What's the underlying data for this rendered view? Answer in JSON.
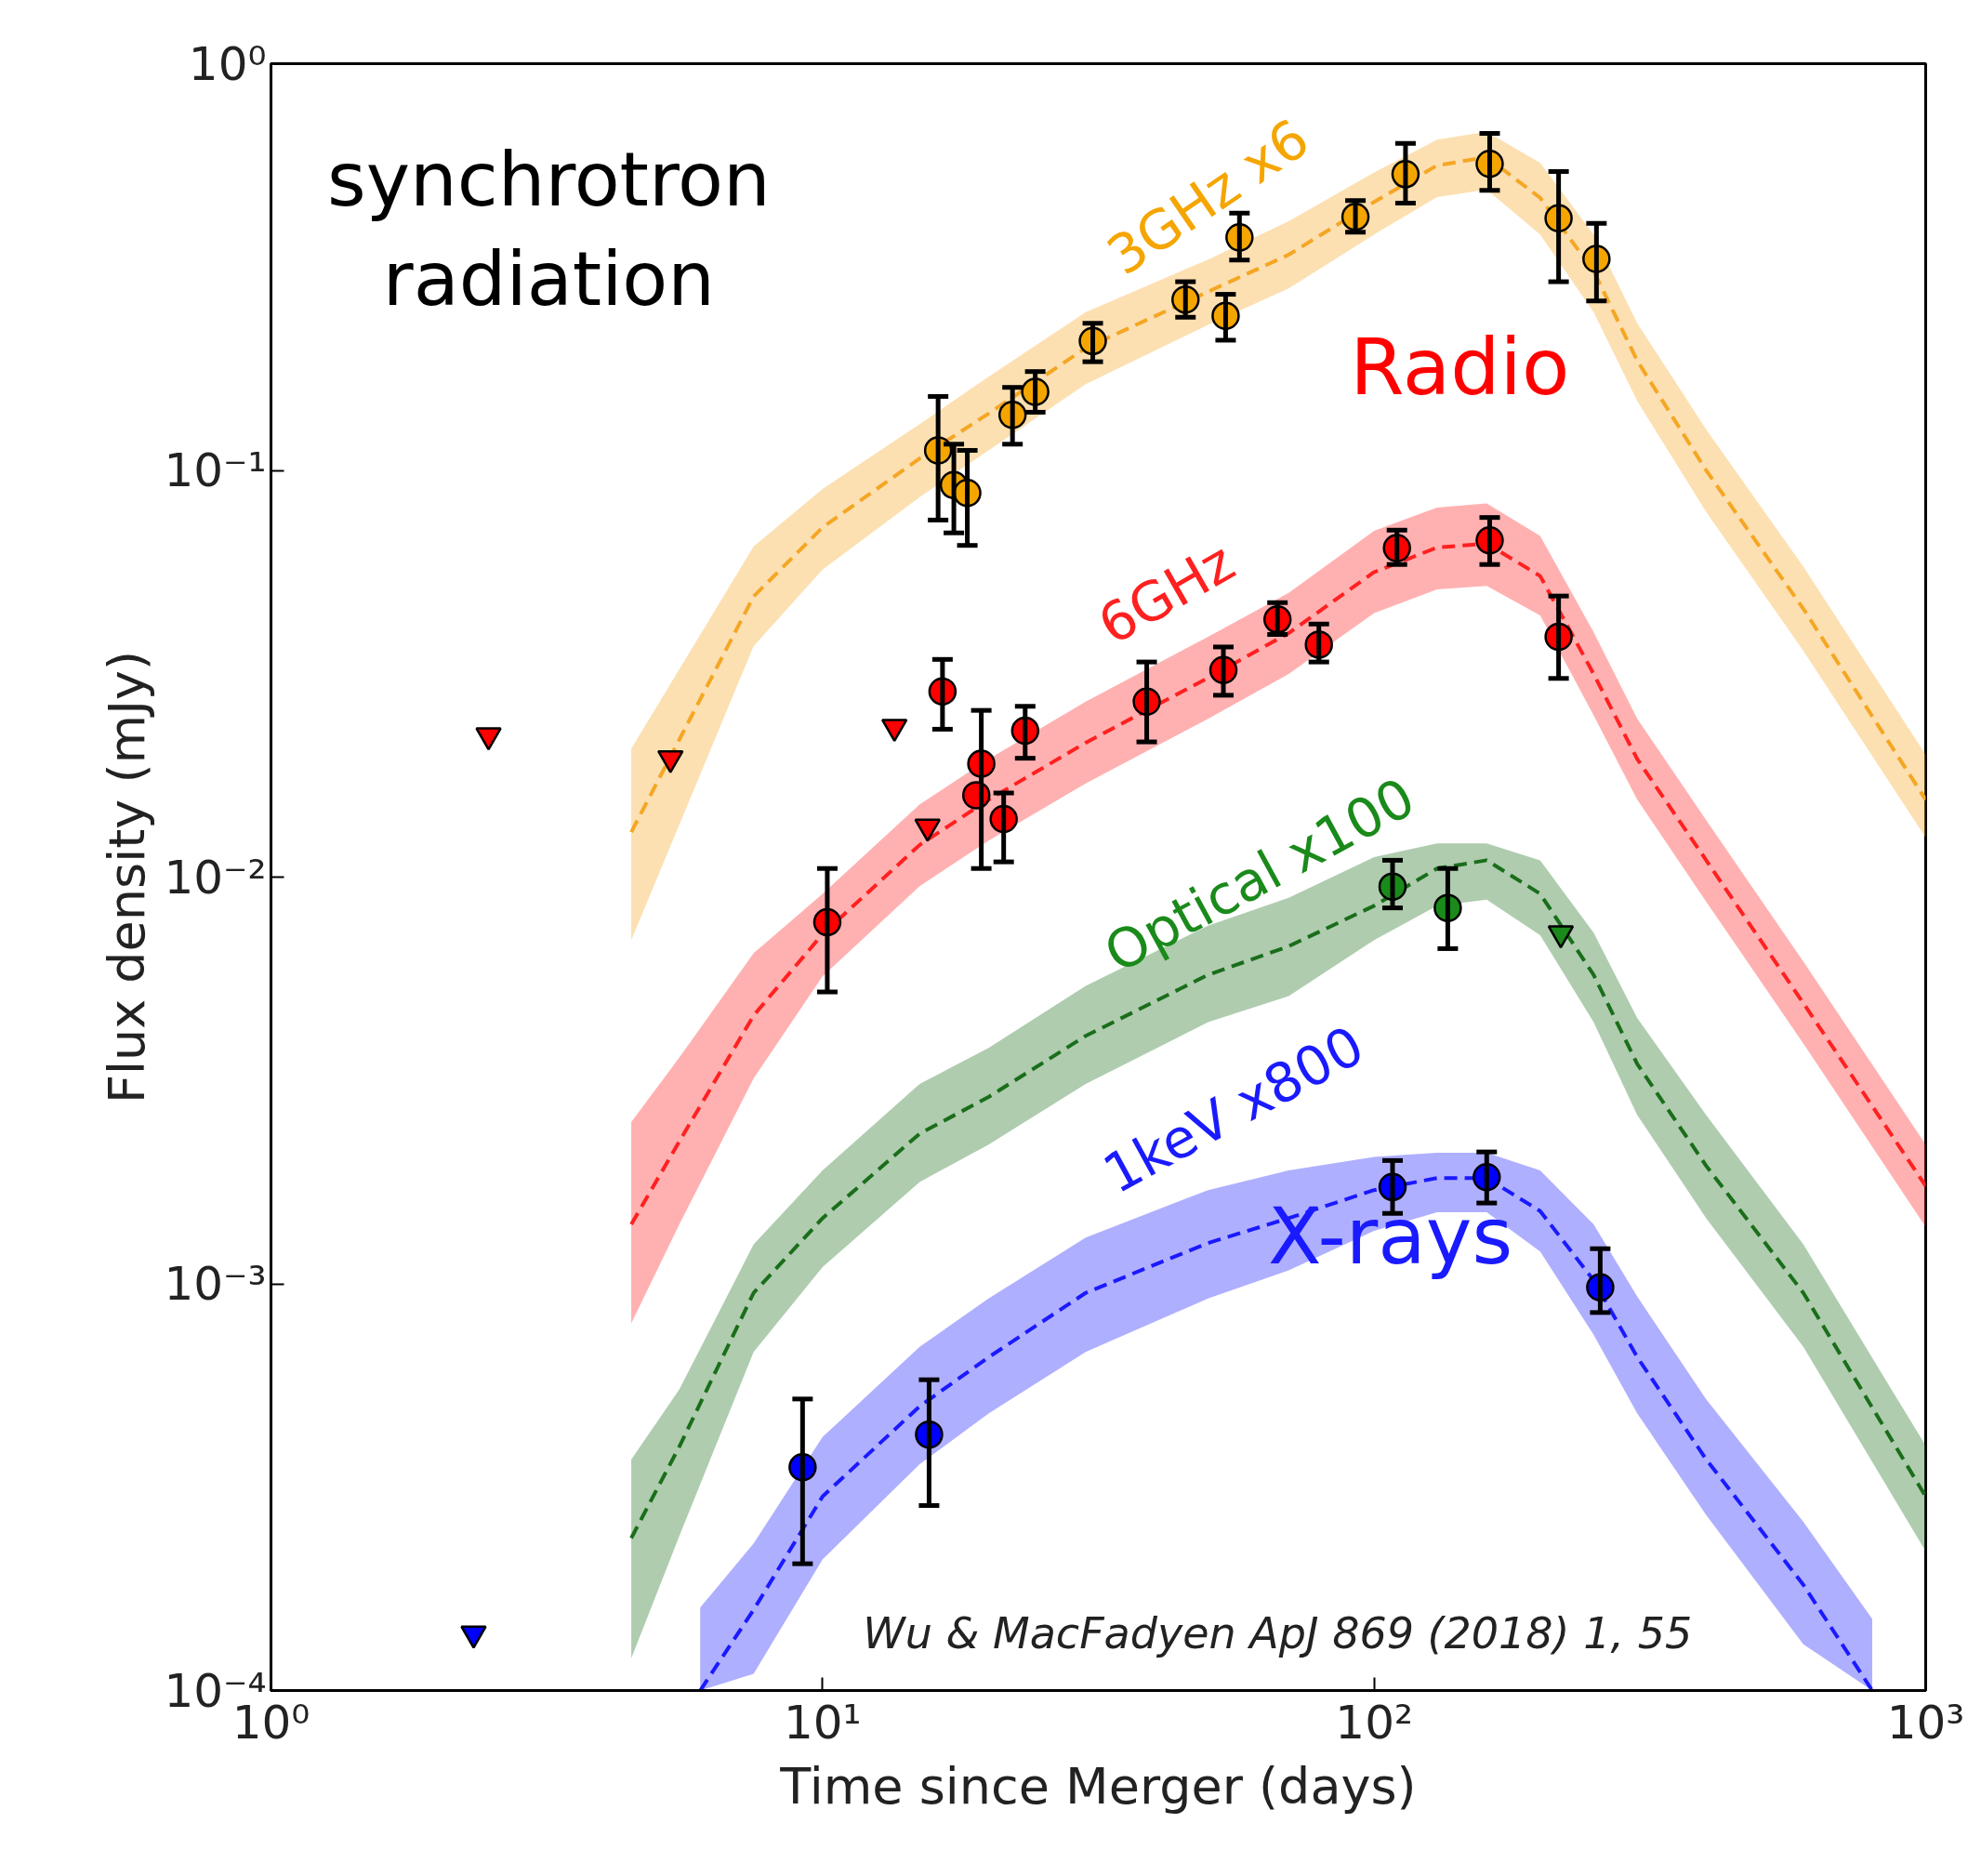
{
  "chart_data": {
    "type": "scatter",
    "xlabel": "Time since Merger (days)",
    "ylabel": "Flux density (mJy)",
    "log": "xy",
    "xlim": [
      1,
      1000
    ],
    "ylim": [
      0.0001,
      1
    ],
    "xticks": [
      {
        "value": 1,
        "label": "10⁰"
      },
      {
        "value": 10,
        "label": "10¹"
      },
      {
        "value": 100,
        "label": "10²"
      },
      {
        "value": 1000,
        "label": "10³"
      }
    ],
    "yticks": [
      {
        "value": 0.0001,
        "label": "10⁻⁴"
      },
      {
        "value": 0.001,
        "label": "10⁻³"
      },
      {
        "value": 0.01,
        "label": "10⁻²"
      },
      {
        "value": 0.1,
        "label": "10⁻¹"
      },
      {
        "value": 1,
        "label": "10⁰"
      }
    ],
    "grid": false,
    "series": [
      {
        "type": "line",
        "line_style": "dashed",
        "color": "#f5a623",
        "x": [
          4.5,
          7.5,
          10,
          15,
          20,
          30,
          50,
          70,
          100,
          130,
          160,
          200,
          250,
          300,
          400,
          600,
          1000
        ],
        "values": [
          0.0129,
          0.049,
          0.0724,
          0.107,
          0.138,
          0.2,
          0.275,
          0.339,
          0.457,
          0.562,
          0.589,
          0.468,
          0.309,
          0.186,
          0.1,
          0.0457,
          0.0155
        ],
        "upper": [
          0.0207,
          0.065,
          0.09,
          0.13,
          0.17,
          0.245,
          0.33,
          0.41,
          0.54,
          0.65,
          0.68,
          0.57,
          0.38,
          0.23,
          0.126,
          0.058,
          0.02
        ],
        "lower": [
          0.007,
          0.037,
          0.057,
          0.086,
          0.112,
          0.163,
          0.228,
          0.28,
          0.38,
          0.47,
          0.49,
          0.38,
          0.245,
          0.148,
          0.079,
          0.036,
          0.0125
        ]
      },
      {
        "type": "line",
        "line_style": "dashed",
        "color": "#ff2020",
        "x": [
          4.5,
          5.5,
          7.5,
          10,
          15,
          20,
          30,
          50,
          70,
          100,
          130,
          160,
          200,
          250,
          300,
          400,
          600,
          1000
        ],
        "values": [
          0.0014,
          0.00224,
          0.00457,
          0.00724,
          0.012,
          0.0155,
          0.0214,
          0.0309,
          0.0398,
          0.0562,
          0.0646,
          0.0661,
          0.055,
          0.0316,
          0.0195,
          0.011,
          0.0049,
          0.00174
        ],
        "upper": [
          0.0025,
          0.0036,
          0.0065,
          0.0091,
          0.0151,
          0.0195,
          0.027,
          0.039,
          0.05,
          0.071,
          0.081,
          0.083,
          0.069,
          0.04,
          0.0245,
          0.0138,
          0.0062,
          0.0022
        ],
        "lower": [
          0.0008,
          0.0014,
          0.0032,
          0.0057,
          0.0095,
          0.0123,
          0.017,
          0.0245,
          0.0316,
          0.0446,
          0.051,
          0.052,
          0.044,
          0.025,
          0.0155,
          0.0087,
          0.0039,
          0.00138
        ]
      },
      {
        "type": "line",
        "line_style": "dashed",
        "color": "#1a6e1a",
        "x": [
          4.5,
          5.5,
          7.5,
          10,
          15,
          20,
          30,
          50,
          70,
          100,
          130,
          160,
          200,
          250,
          300,
          400,
          600,
          1000
        ],
        "values": [
          0.000237,
          0.000398,
          0.00095,
          0.00145,
          0.00234,
          0.00288,
          0.00407,
          0.00575,
          0.00676,
          0.0085,
          0.0105,
          0.011,
          0.0091,
          0.00575,
          0.00347,
          0.00195,
          0.00095,
          0.0003
        ],
        "upper": [
          0.00037,
          0.00055,
          0.00125,
          0.0019,
          0.0031,
          0.0038,
          0.0054,
          0.0076,
          0.0089,
          0.0112,
          0.0121,
          0.0121,
          0.011,
          0.0073,
          0.0045,
          0.0026,
          0.00125,
          0.0004
        ],
        "lower": [
          0.00012,
          0.00024,
          0.00068,
          0.0011,
          0.00178,
          0.0022,
          0.0031,
          0.0044,
          0.0051,
          0.007,
          0.0085,
          0.0088,
          0.0072,
          0.0044,
          0.0026,
          0.00145,
          0.0007,
          0.00022
        ]
      },
      {
        "type": "line",
        "line_style": "dashed",
        "color": "#1a1aff",
        "x": [
          6,
          7.5,
          10,
          15,
          20,
          30,
          50,
          70,
          100,
          130,
          160,
          200,
          250,
          300,
          400,
          600,
          800
        ],
        "values": [
          0.0001,
          0.000158,
          0.0003,
          0.0005,
          0.00066,
          0.00095,
          0.00126,
          0.00145,
          0.0017,
          0.00182,
          0.00182,
          0.00151,
          0.00102,
          0.00066,
          0.00037,
          0.000182,
          0.0001
        ],
        "upper": [
          0.00016,
          0.00023,
          0.00042,
          0.0007,
          0.00092,
          0.0013,
          0.0017,
          0.0019,
          0.00205,
          0.0021,
          0.0021,
          0.0019,
          0.0014,
          0.00093,
          0.00052,
          0.00026,
          0.00015
        ],
        "lower": [
          0.0001,
          0.00011,
          0.00021,
          0.00036,
          0.00048,
          0.00068,
          0.00092,
          0.00108,
          0.00135,
          0.0015,
          0.0015,
          0.0012,
          0.00075,
          0.00048,
          0.00027,
          0.00013,
          0.0001
        ]
      },
      {
        "marker": "circle",
        "color": "#f5a500",
        "x": [
          16.2,
          17.3,
          18.3,
          22.1,
          24.3,
          30.9,
          45.5,
          53.8,
          57.0,
          92.5,
          114,
          162,
          216,
          253
        ],
        "values": [
          0.112,
          0.092,
          0.088,
          0.137,
          0.156,
          0.208,
          0.263,
          0.24,
          0.374,
          0.42,
          0.535,
          0.567,
          0.417,
          0.331
        ],
        "errors": [
          [
            0.0755,
            0.152
          ],
          [
            0.0702,
            0.116
          ],
          [
            0.0654,
            0.112
          ],
          [
            0.116,
            0.16
          ],
          [
            0.139,
            0.175
          ],
          [
            0.185,
            0.23
          ],
          [
            0.238,
            0.291
          ],
          [
            0.209,
            0.271
          ],
          [
            0.329,
            0.429
          ],
          [
            0.385,
            0.461
          ],
          [
            0.454,
            0.637
          ],
          [
            0.488,
            0.674
          ],
          [
            0.291,
            0.543
          ],
          [
            0.261,
            0.405
          ]
        ]
      },
      {
        "marker": "circle",
        "color": "#ff0000",
        "x": [
          10.2,
          16.5,
          19.4,
          19.0,
          21.3,
          23.3,
          38.7,
          53.3,
          66.8,
          79.4,
          110,
          162,
          216
        ],
        "values": [
          0.00775,
          0.0286,
          0.019,
          0.0159,
          0.0139,
          0.0229,
          0.027,
          0.0323,
          0.043,
          0.0373,
          0.0644,
          0.0673,
          0.039
        ],
        "errors": [
          [
            0.00522,
            0.0105
          ],
          [
            0.0231,
            0.0343
          ],
          [
            0.0105,
            0.0257
          ],
          null,
          [
            0.0109,
            0.0161
          ],
          [
            0.0196,
            0.0263
          ],
          [
            0.0215,
            0.0338
          ],
          [
            0.028,
            0.0368
          ],
          [
            0.0395,
            0.0473
          ],
          [
            0.0338,
            0.0419
          ],
          [
            0.0587,
            0.0713
          ],
          [
            0.0587,
            0.0766
          ],
          [
            0.0308,
            0.0491
          ]
        ]
      },
      {
        "marker": "triangle",
        "color": "#ff0000",
        "x": [
          2.48,
          5.3,
          13.5,
          15.5
        ],
        "values": [
          0.0223,
          0.0196,
          0.0234,
          0.0133
        ]
      },
      {
        "marker": "circle",
        "color": "#1a8a1a",
        "x": [
          108,
          136
        ],
        "values": [
          0.00948,
          0.0084
        ],
        "errors": [
          [
            0.0084,
            0.011
          ],
          [
            0.00667,
            0.0105
          ]
        ]
      },
      {
        "marker": "triangle",
        "color": "#1a8a1a",
        "x": [
          218
        ],
        "values": [
          0.00727
        ]
      },
      {
        "marker": "circle",
        "color": "#0000ff",
        "x": [
          9.2,
          15.6,
          108,
          160,
          257
        ],
        "values": [
          0.000354,
          0.000426,
          0.00173,
          0.00183,
          0.00098
        ],
        "errors": [
          [
            0.000205,
            0.000521
          ],
          [
            0.000285,
            0.000581
          ],
          [
            0.00149,
            0.00201
          ],
          [
            0.00158,
            0.00211
          ],
          [
            0.00085,
            0.00122
          ]
        ]
      },
      {
        "marker": "triangle",
        "color": "#0000ff",
        "x": [
          2.33
        ],
        "values": [
          0.000138
        ]
      }
    ],
    "annotations": [
      "synchrotron\nradiation",
      "3GHz x6",
      "Radio",
      "6GHz",
      "Optical x100",
      "1keV x800",
      "X-rays",
      "Wu & MacFadyen ApJ 869 (2018) 1, 55"
    ]
  }
}
